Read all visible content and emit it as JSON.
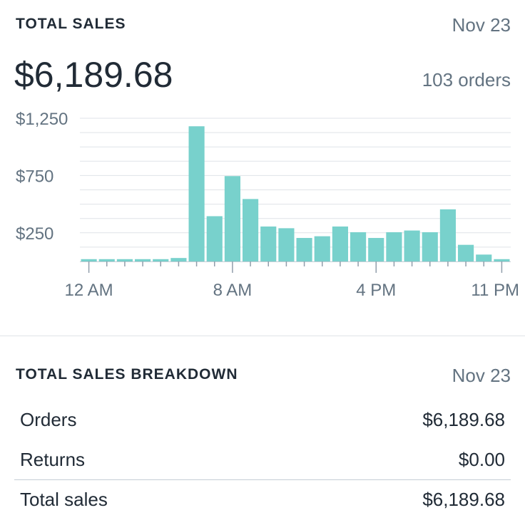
{
  "header": {
    "title": "TOTAL SALES",
    "date": "Nov 23",
    "total": "$6,189.68",
    "orders": "103 orders"
  },
  "chart_data": {
    "type": "bar",
    "color": "#78d1cc",
    "ylim": [
      0,
      1250
    ],
    "yticks": [
      250,
      750,
      1250
    ],
    "ytick_labels": [
      "$250",
      "$750",
      "$1,250"
    ],
    "x_tick_labels": [
      {
        "label": "12 AM",
        "hour": 0
      },
      {
        "label": "8 AM",
        "hour": 8
      },
      {
        "label": "4 PM",
        "hour": 16
      },
      {
        "label": "11 PM",
        "hour": 23
      }
    ],
    "categories": [
      "12 AM",
      "1 AM",
      "2 AM",
      "3 AM",
      "4 AM",
      "5 AM",
      "6 AM",
      "7 AM",
      "8 AM",
      "9 AM",
      "10 AM",
      "11 AM",
      "12 PM",
      "1 PM",
      "2 PM",
      "3 PM",
      "4 PM",
      "5 PM",
      "6 PM",
      "7 PM",
      "8 PM",
      "9 PM",
      "10 PM",
      "11 PM"
    ],
    "values": [
      20,
      20,
      20,
      20,
      20,
      30,
      1180,
      395,
      745,
      545,
      305,
      290,
      205,
      220,
      305,
      255,
      205,
      255,
      270,
      255,
      455,
      145,
      60,
      20
    ]
  },
  "breakdown": {
    "title": "TOTAL SALES BREAKDOWN",
    "date": "Nov 23",
    "rows": [
      {
        "label": "Orders",
        "value": "$6,189.68"
      },
      {
        "label": "Returns",
        "value": "$0.00"
      }
    ],
    "total": {
      "label": "Total sales",
      "value": "$6,189.68"
    }
  }
}
